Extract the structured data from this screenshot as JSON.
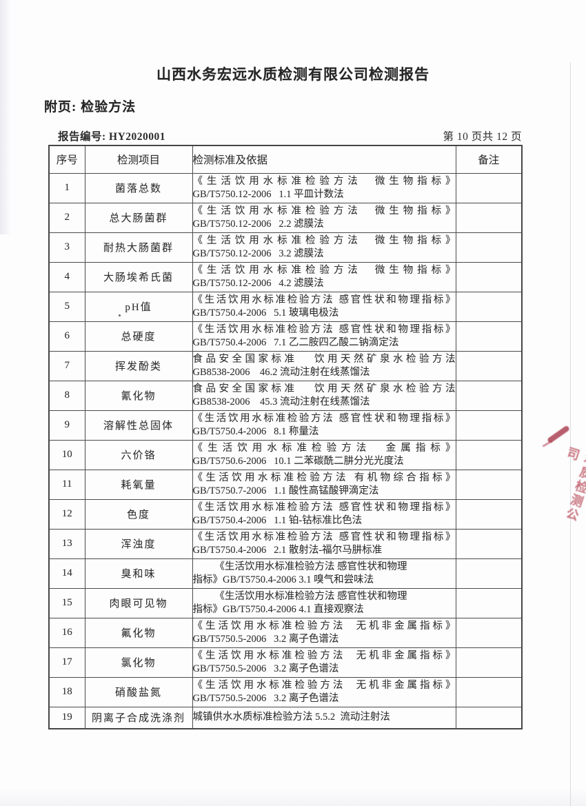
{
  "page": {
    "title": "山西水务宏远水质检测有限公司检测报告",
    "subtitle": "附页: 检验方法",
    "report_no_label": "报告编号: HY2020001",
    "page_indicator": "第 10 页共 12 页"
  },
  "table": {
    "headers": [
      "序号",
      "检测项目",
      "检测标准及依据",
      "备注"
    ],
    "rows": [
      {
        "no": "1",
        "item": "菌落总数",
        "line1": "《生活饮用水标准检验方法  微生物指标》",
        "line2": "GB/T5750.12-2006   1.1 平皿计数法",
        "remark": "",
        "style": "justify"
      },
      {
        "no": "2",
        "item": "总大肠菌群",
        "line1": "《生活饮用水标准检验方法  微生物指标》",
        "line2": "GB/T5750.12-2006   2.2 滤膜法",
        "remark": "",
        "style": "justify"
      },
      {
        "no": "3",
        "item": "耐热大肠菌群",
        "line1": "《生活饮用水标准检验方法  微生物指标》",
        "line2": "GB/T5750.12-2006   3.2 滤膜法",
        "remark": "",
        "style": "justify"
      },
      {
        "no": "4",
        "item": "大肠埃希氏菌",
        "line1": "《生活饮用水标准检验方法  微生物指标》",
        "line2": "GB/T5750.12-2006   4.2 滤膜法",
        "remark": "",
        "style": "justify"
      },
      {
        "no": "5",
        "item": "pH值",
        "line1": "《生活饮用水标准检验方法 感官性状和物理指标》",
        "line2": "GB/T5750.4-2006   5.1 玻璃电极法",
        "remark": "",
        "style": "justify"
      },
      {
        "no": "6",
        "item": "总硬度",
        "line1": "《生活饮用水标准检验方法 感官性状和物理指标》",
        "line2": "GB/T5750.4-2006   7.1 乙二胺四乙酸二钠滴定法",
        "remark": "",
        "style": "justify"
      },
      {
        "no": "7",
        "item": "挥发酚类",
        "line1": "食品安全国家标准   饮用天然矿泉水检验方法",
        "line2": "GB8538-2006    46.2 流动注射在线蒸馏法",
        "remark": "",
        "style": "justify"
      },
      {
        "no": "8",
        "item": "氰化物",
        "line1": "食品安全国家标准   饮用天然矿泉水检验方法",
        "line2": "GB8538-2006    45.3 流动注射在线蒸馏法",
        "remark": "",
        "style": "justify"
      },
      {
        "no": "9",
        "item": "溶解性总固体",
        "line1": "《生活饮用水标准检验方法 感官性状和物理指标》",
        "line2": "GB/T5750.4-2006   8.1 称量法",
        "remark": "",
        "style": "justify"
      },
      {
        "no": "10",
        "item": "六价铬",
        "line1": "《生活饮用水标准检验方法  金属指标》",
        "line2": "GB/T5750.6-2006   10.1 二苯碳酰二肼分光光度法",
        "remark": "",
        "style": "justify"
      },
      {
        "no": "11",
        "item": "耗氧量",
        "line1": "《生活饮用水标准检验方法 有机物综合指标》",
        "line2": "GB/T5750.7-2006   1.1 酸性高锰酸钾滴定法",
        "remark": "",
        "style": "justify"
      },
      {
        "no": "12",
        "item": "色度",
        "line1": "《生活饮用水标准检验方法 感官性状和物理指标》",
        "line2": "GB/T5750.4-2006   1.1 铂-钴标准比色法",
        "remark": "",
        "style": "justify"
      },
      {
        "no": "13",
        "item": "浑浊度",
        "line1": "《生活饮用水标准检验方法 感官性状和物理指标》",
        "line2": "GB/T5750.4-2006   2.1 散射法-福尔马肼标准",
        "remark": "",
        "style": "justify"
      },
      {
        "no": "14",
        "item": "臭和味",
        "line1": "《生活饮用水标准检验方法 感官性状和物理",
        "line2": "指标》GB/T5750.4-2006 3.1 嗅气和尝味法",
        "remark": "",
        "style": "indent"
      },
      {
        "no": "15",
        "item": "肉眼可见物",
        "line1": "《生活饮用水标准检验方法 感官性状和物理",
        "line2": "指标》GB/T5750.4-2006 4.1 直接观察法",
        "remark": "",
        "style": "indent"
      },
      {
        "no": "16",
        "item": "氟化物",
        "line1": "《生活饮用水标准检验方法  无机非金属指标》",
        "line2": "GB/T5750.5-2006   3.2 离子色谱法",
        "remark": "",
        "style": "justify"
      },
      {
        "no": "17",
        "item": "氯化物",
        "line1": "《生活饮用水标准检验方法  无机非金属指标》",
        "line2": "GB/T5750.5-2006   3.2 离子色谱法",
        "remark": "",
        "style": "justify"
      },
      {
        "no": "18",
        "item": "硝酸盐氮",
        "line1": "《生活饮用水标准检验方法  无机非金属指标》",
        "line2": "GB/T5750.5-2006   3.2 离子色谱法",
        "remark": "",
        "style": "justify"
      },
      {
        "no": "19",
        "item": "阴离子合成洗涤剂",
        "line1": "城镇供水水质标准检验方法 5.5.2  流动注射法",
        "line2": "",
        "remark": "",
        "style": "single"
      }
    ]
  },
  "stamp": {
    "text": "水质检测公司",
    "color": "#b5404e"
  },
  "colors": {
    "text": "#2e2e2e",
    "table_border": "#4a4a4a",
    "stamp_red": "#b5404e"
  }
}
